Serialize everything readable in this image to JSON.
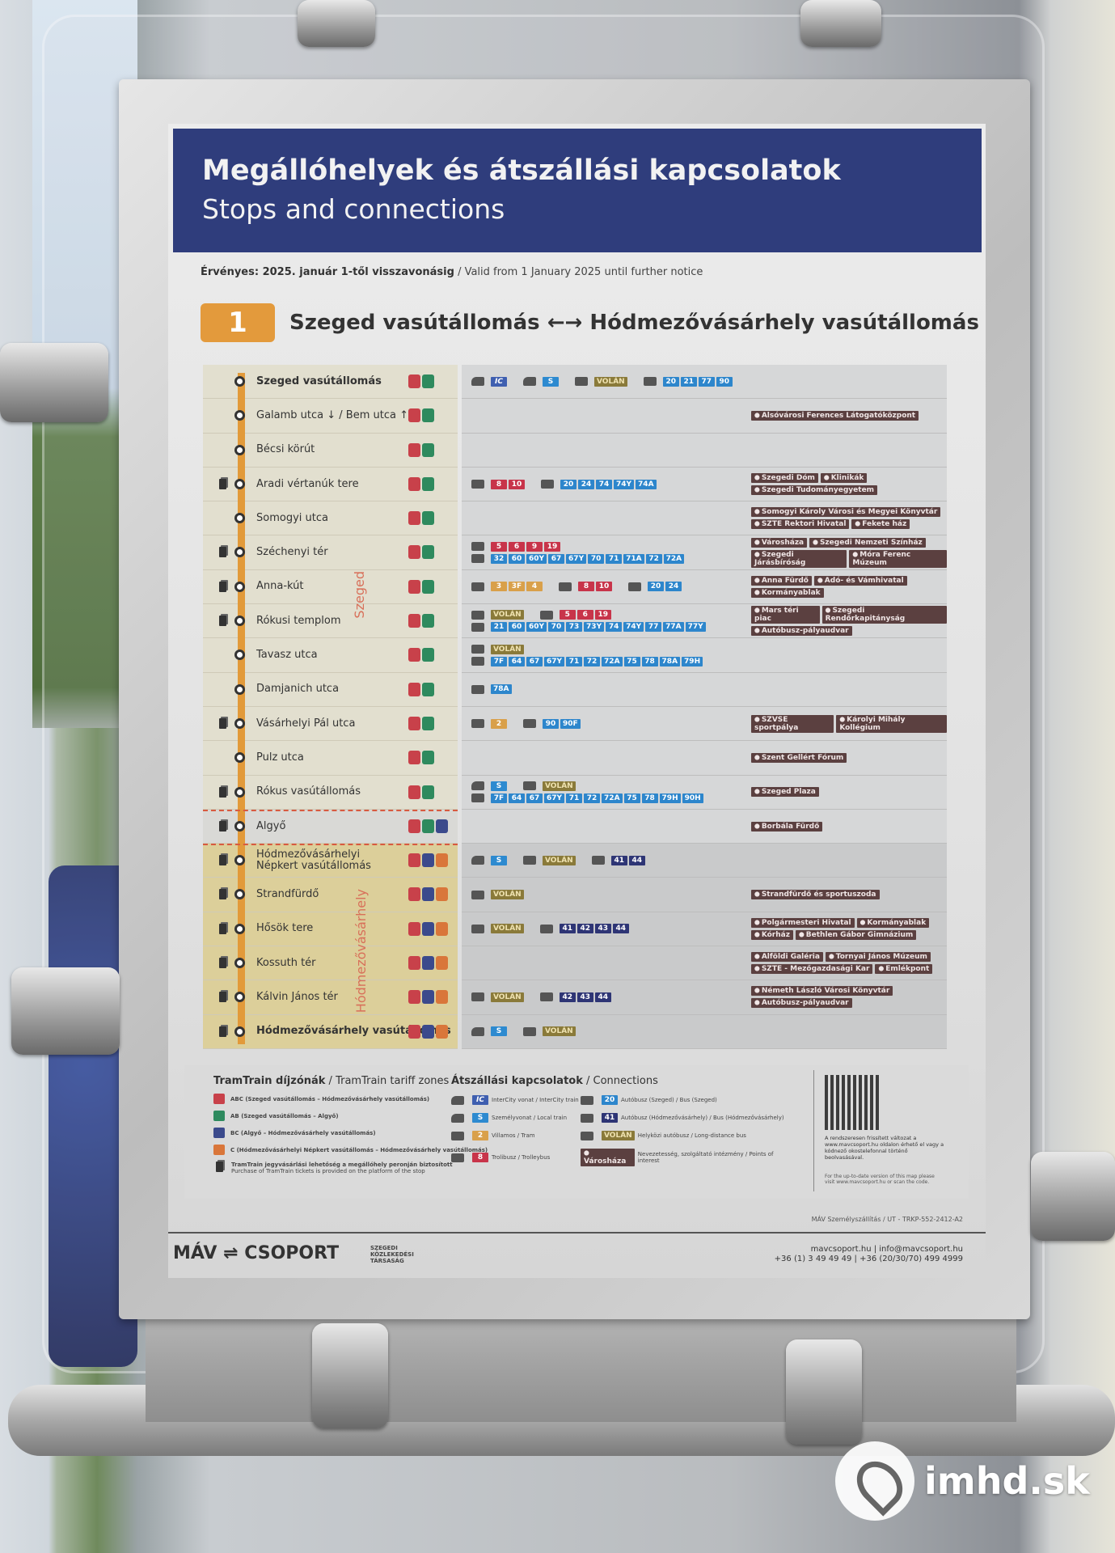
{
  "header": {
    "title": "Megállóhelyek és átszállási kapcsolatok",
    "subtitle": "Stops and connections"
  },
  "validity": {
    "hu": "Érvényes: 2025. január 1-től visszavonásig",
    "en": " / Valid from 1 January 2025 until further notice"
  },
  "route": {
    "number": "1",
    "title": "Szeged vasútállomás ←→ Hódmezővásárhely vasútállomás",
    "accent": "#e39a3c"
  },
  "region_labels": {
    "szeged": "Szeged",
    "hmv": "Hódmezővásárhely"
  },
  "colors": {
    "zone_red": "#c8414a",
    "zone_green": "#2e8a5e",
    "zone_blue": "#3b4a8c",
    "zone_orange": "#d9763a",
    "ic": "#3f5fb0",
    "s": "#2d8ad0",
    "tram": "#d9a04a",
    "troli": "#c8344a",
    "bus": "#2d86cc",
    "hmv": "#2e3575",
    "volan": "#8a7a3a",
    "poi": "#5b4040",
    "line": "#e29a3a"
  },
  "stops": [
    {
      "name": "Szeged vasútállomás",
      "bold": true,
      "ticket": false,
      "area": "sz",
      "zones": [
        "red",
        "green"
      ],
      "conn": [
        [
          {
            "v": "train",
            "t": "ic",
            "b": [
              "IC"
            ]
          },
          {
            "v": "train",
            "t": "s",
            "b": [
              "S"
            ]
          },
          {
            "v": "bus",
            "t": "volan",
            "b": [
              "VOLÁN"
            ]
          },
          {
            "v": "bus",
            "t": "bus",
            "b": [
              "20",
              "21",
              "77",
              "90"
            ]
          }
        ]
      ],
      "poi": []
    },
    {
      "name": "Galamb utca ↓ / Bem utca ↑",
      "ticket": false,
      "area": "sz",
      "zones": [
        "red",
        "green"
      ],
      "conn": [],
      "poi": [
        [
          "Alsóvárosi Ferences Látogatóközpont"
        ]
      ]
    },
    {
      "name": "Bécsi körút",
      "ticket": false,
      "area": "sz",
      "zones": [
        "red",
        "green"
      ],
      "conn": [],
      "poi": []
    },
    {
      "name": "Aradi vértanúk tere",
      "ticket": true,
      "area": "sz",
      "zones": [
        "red",
        "green"
      ],
      "conn": [
        [
          {
            "v": "troli",
            "t": "troli",
            "b": [
              "8",
              "10"
            ]
          },
          {
            "v": "bus",
            "t": "bus",
            "b": [
              "20",
              "24",
              "74",
              "74Y",
              "74A"
            ]
          }
        ]
      ],
      "poi": [
        [
          "Szegedi Dóm",
          "Klinikák"
        ],
        [
          "Szegedi Tudományegyetem"
        ]
      ]
    },
    {
      "name": "Somogyi utca",
      "ticket": false,
      "area": "sz",
      "zones": [
        "red",
        "green"
      ],
      "conn": [],
      "poi": [
        [
          "Somogyi Károly Városi és Megyei Könyvtár"
        ],
        [
          "SZTE Rektori Hivatal",
          "Fekete ház"
        ]
      ]
    },
    {
      "name": "Széchenyi tér",
      "ticket": true,
      "area": "sz",
      "zones": [
        "red",
        "green"
      ],
      "conn": [
        [
          {
            "v": "troli",
            "t": "troli",
            "b": [
              "5",
              "6",
              "9",
              "19"
            ]
          }
        ],
        [
          {
            "v": "bus",
            "t": "bus",
            "b": [
              "32",
              "60",
              "60Y",
              "67",
              "67Y",
              "70",
              "71",
              "71A",
              "72",
              "72A"
            ]
          }
        ]
      ],
      "poi": [
        [
          "Városháza",
          "Szegedi Nemzeti Színház"
        ],
        [
          "Szegedi Járásbíróság",
          "Móra Ferenc Múzeum"
        ]
      ]
    },
    {
      "name": "Anna-kút",
      "ticket": true,
      "area": "sz",
      "zones": [
        "red",
        "green"
      ],
      "conn": [
        [
          {
            "v": "tram",
            "t": "tram",
            "b": [
              "3",
              "3F",
              "4"
            ]
          },
          {
            "v": "troli",
            "t": "troli",
            "b": [
              "8",
              "10"
            ]
          },
          {
            "v": "bus",
            "t": "bus",
            "b": [
              "20",
              "24"
            ]
          }
        ]
      ],
      "poi": [
        [
          "Anna Fürdő",
          "Adó- és Vámhivatal"
        ],
        [
          "Kormányablak"
        ]
      ]
    },
    {
      "name": "Rókusi templom",
      "ticket": true,
      "area": "sz",
      "zones": [
        "red",
        "green"
      ],
      "conn": [
        [
          {
            "v": "bus",
            "t": "volan",
            "b": [
              "VOLÁN"
            ]
          },
          {
            "v": "troli",
            "t": "troli",
            "b": [
              "5",
              "6",
              "19"
            ]
          }
        ],
        [
          {
            "v": "bus",
            "t": "bus",
            "b": [
              "21",
              "60",
              "60Y",
              "70",
              "73",
              "73Y",
              "74",
              "74Y",
              "77",
              "77A",
              "77Y"
            ]
          }
        ]
      ],
      "poi": [
        [
          "Mars téri piac",
          "Szegedi Rendőrkapitányság"
        ],
        [
          "Autóbusz-pályaudvar"
        ]
      ]
    },
    {
      "name": "Tavasz utca",
      "ticket": false,
      "area": "sz",
      "zones": [
        "red",
        "green"
      ],
      "conn": [
        [
          {
            "v": "bus",
            "t": "volan",
            "b": [
              "VOLÁN"
            ]
          }
        ],
        [
          {
            "v": "bus",
            "t": "bus",
            "b": [
              "7F",
              "64",
              "67",
              "67Y",
              "71",
              "72",
              "72A",
              "75",
              "78",
              "78A",
              "79H"
            ]
          }
        ]
      ],
      "poi": []
    },
    {
      "name": "Damjanich utca",
      "ticket": false,
      "area": "sz",
      "zones": [
        "red",
        "green"
      ],
      "conn": [
        [
          {
            "v": "bus",
            "t": "bus",
            "b": [
              "78A"
            ]
          }
        ]
      ],
      "poi": []
    },
    {
      "name": "Vásárhelyi Pál utca",
      "ticket": true,
      "area": "sz",
      "zones": [
        "red",
        "green"
      ],
      "conn": [
        [
          {
            "v": "tram",
            "t": "tram",
            "b": [
              "2"
            ]
          },
          {
            "v": "bus",
            "t": "bus",
            "b": [
              "90",
              "90F"
            ]
          }
        ]
      ],
      "poi": [
        [
          "SZVSE sportpálya",
          "Károlyi Mihály Kollégium"
        ]
      ]
    },
    {
      "name": "Pulz utca",
      "ticket": false,
      "area": "sz",
      "zones": [
        "red",
        "green"
      ],
      "conn": [],
      "poi": [
        [
          "Szent Gellért Fórum"
        ]
      ]
    },
    {
      "name": "Rókus vasútállomás",
      "ticket": true,
      "area": "sz",
      "zones": [
        "red",
        "green"
      ],
      "conn": [
        [
          {
            "v": "train",
            "t": "s",
            "b": [
              "S"
            ]
          },
          {
            "v": "bus",
            "t": "volan",
            "b": [
              "VOLÁN"
            ]
          }
        ],
        [
          {
            "v": "bus",
            "t": "bus",
            "b": [
              "7F",
              "64",
              "67",
              "67Y",
              "71",
              "72",
              "72A",
              "75",
              "78",
              "79H",
              "90H"
            ]
          }
        ]
      ],
      "poi": [
        [
          "Szeged Plaza"
        ]
      ]
    },
    {
      "name": "Algyő",
      "ticket": true,
      "area": "al",
      "zones": [
        "red",
        "green",
        "blue"
      ],
      "conn": [],
      "poi": [
        [
          "Borbála Fürdő"
        ]
      ]
    },
    {
      "name": "Hódmezővásárhelyi Népkert vasútállomás",
      "ticket": true,
      "area": "hm",
      "zones": [
        "red",
        "blue",
        "orange"
      ],
      "conn": [
        [
          {
            "v": "train",
            "t": "s",
            "b": [
              "S"
            ]
          },
          {
            "v": "bus",
            "t": "volan",
            "b": [
              "VOLÁN"
            ]
          },
          {
            "v": "bus",
            "t": "hmv",
            "b": [
              "41",
              "44"
            ]
          }
        ]
      ],
      "poi": []
    },
    {
      "name": "Strandfürdő",
      "ticket": true,
      "area": "hm",
      "zones": [
        "red",
        "blue",
        "orange"
      ],
      "conn": [
        [
          {
            "v": "bus",
            "t": "volan",
            "b": [
              "VOLÁN"
            ]
          }
        ]
      ],
      "poi": [
        [
          "Strandfürdő és sportuszoda"
        ]
      ]
    },
    {
      "name": "Hősök tere",
      "ticket": true,
      "area": "hm",
      "zones": [
        "red",
        "blue",
        "orange"
      ],
      "conn": [
        [
          {
            "v": "bus",
            "t": "volan",
            "b": [
              "VOLÁN"
            ]
          },
          {
            "v": "bus",
            "t": "hmv",
            "b": [
              "41",
              "42",
              "43",
              "44"
            ]
          }
        ]
      ],
      "poi": [
        [
          "Polgármesteri Hivatal",
          "Kormányablak"
        ],
        [
          "Kórház",
          "Bethlen Gábor Gimnázium"
        ]
      ]
    },
    {
      "name": "Kossuth tér",
      "ticket": true,
      "area": "hm",
      "zones": [
        "red",
        "blue",
        "orange"
      ],
      "conn": [],
      "poi": [
        [
          "Alföldi Galéria",
          "Tornyai János Múzeum"
        ],
        [
          "SZTE - Mezőgazdasági Kar",
          "Emlékpont"
        ]
      ]
    },
    {
      "name": "Kálvin János tér",
      "ticket": true,
      "area": "hm",
      "zones": [
        "red",
        "blue",
        "orange"
      ],
      "conn": [
        [
          {
            "v": "bus",
            "t": "volan",
            "b": [
              "VOLÁN"
            ]
          },
          {
            "v": "bus",
            "t": "hmv",
            "b": [
              "42",
              "43",
              "44"
            ]
          }
        ]
      ],
      "poi": [
        [
          "Németh László Városi Könyvtár"
        ],
        [
          "Autóbusz-pályaudvar"
        ]
      ]
    },
    {
      "name": "Hódmezővásárhely vasútállomás",
      "bold": true,
      "ticket": true,
      "area": "hm",
      "zones": [
        "red",
        "blue",
        "orange"
      ],
      "conn": [
        [
          {
            "v": "train",
            "t": "s",
            "b": [
              "S"
            ]
          },
          {
            "v": "bus",
            "t": "volan",
            "b": [
              "VOLÁN"
            ]
          }
        ]
      ],
      "poi": []
    }
  ],
  "legend": {
    "zones_title_hu": "TramTrain díjzónák",
    "zones_title_en": " / TramTrain tariff zones",
    "zones": [
      {
        "c": "red",
        "t": "ABC (Szeged vasútállomás – Hódmezővásárhely vasútállomás)"
      },
      {
        "c": "green",
        "t": "AB (Szeged vasútállomás – Algyő)"
      },
      {
        "c": "blue",
        "t": "BC (Algyő – Hódmezővásárhely vasútállomás)"
      },
      {
        "c": "orange",
        "t": "C (Hódmezővásárhelyi Népkert vasútállomás – Hódmezővásárhely vasútállomás)"
      }
    ],
    "ticket_hu": "TramTrain jegyvásárlási lehetőség a megállóhely peronján biztosított",
    "ticket_en": "Purchase of TramTrain tickets is provided on the platform of the stop",
    "conn_title_hu": "Átszállási kapcsolatok",
    "conn_title_en": " / Connections",
    "conn": [
      {
        "v": "train",
        "t": "ic",
        "b": "IC",
        "l": "InterCity vonat / InterCity train"
      },
      {
        "v": "bus",
        "t": "bus",
        "b": "20",
        "l": "Autóbusz (Szeged) / Bus (Szeged)"
      },
      {
        "v": "train",
        "t": "s",
        "b": "S",
        "l": "Személyvonat / Local train"
      },
      {
        "v": "bus",
        "t": "hmv",
        "b": "41",
        "l": "Autóbusz (Hódmezővásárhely) / Bus (Hódmezővásárhely)"
      },
      {
        "v": "tram",
        "t": "tram",
        "b": "2",
        "l": "Villamos / Tram"
      },
      {
        "v": "bus",
        "t": "volan",
        "b": "VOLÁN",
        "l": "Helyközi autóbusz / Long-distance bus"
      },
      {
        "v": "troli",
        "t": "troli",
        "b": "8",
        "l": "Trolibusz / Trolleybus"
      },
      {
        "v": "",
        "t": "poi",
        "b": "Városháza",
        "l": "Nevezetesség, szolgáltató intézmény / Points of interest"
      }
    ],
    "qr_hu": "A rendszeresen frissített változat a www.mavcsoport.hu oldalon érhető el vagy a kódnező okostelefonnal történő beolvasásával.",
    "qr_en": "For the up-to-date version of this map please visit www.mavcsoport.hu or scan the code."
  },
  "footer": {
    "logo": "MÁV ⇌ CSOPORT",
    "szkt": "SZEGEDI KÖZLEKEDÉSI TÁRSASÁG",
    "ref": "MÁV Személyszállítás / UT - TRKP-552-2412-A2",
    "web": "mavcsoport.hu | info@mavcsoport.hu",
    "phone": "+36 (1) 3 49 49 49 | +36 (20/30/70) 499 4999"
  },
  "watermark": "imhd.sk"
}
